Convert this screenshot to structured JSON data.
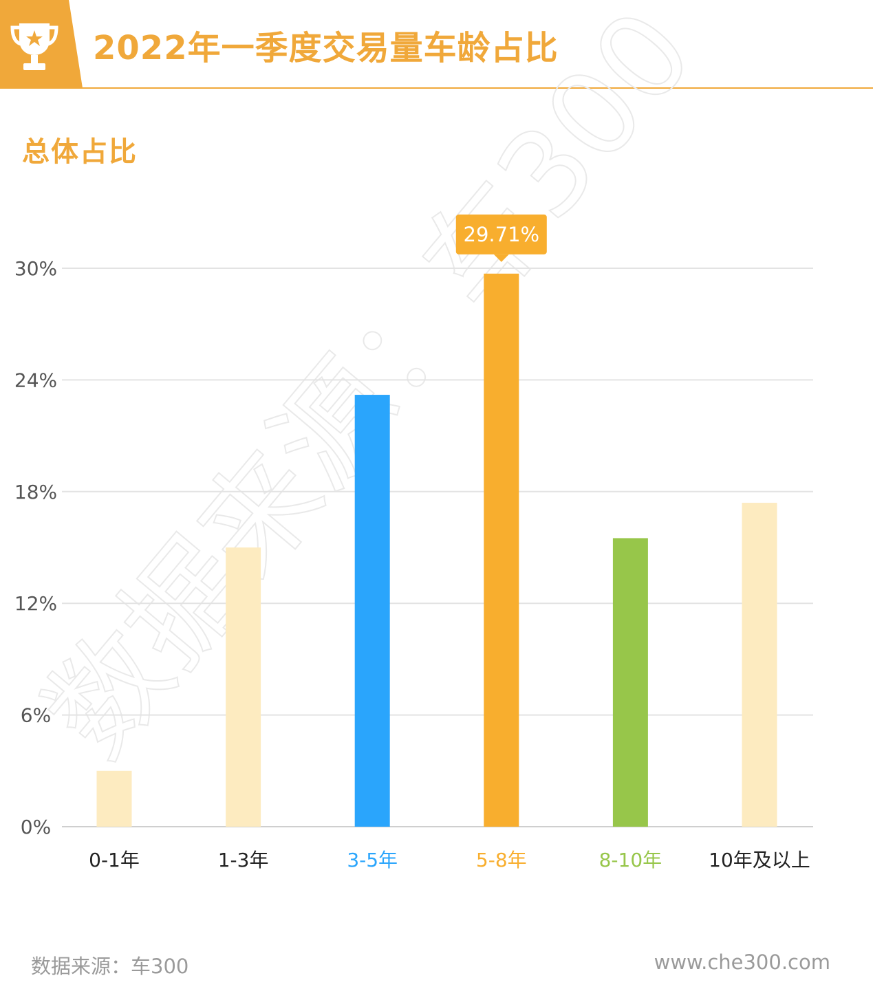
{
  "header": {
    "title": "2022年一季度交易量车龄占比",
    "badge_icon": "trophy-icon",
    "accent_color": "#F0A83A"
  },
  "subtitle": "总体占比",
  "watermark": "数据来源：车300",
  "chart_data": {
    "type": "bar",
    "title": "",
    "xlabel": "",
    "ylabel": "",
    "ylim": [
      0,
      30
    ],
    "yticks": [
      "0%",
      "6%",
      "12%",
      "18%",
      "24%",
      "30%"
    ],
    "ytick_values": [
      0,
      6,
      12,
      18,
      24,
      30
    ],
    "grid": true,
    "categories": [
      "0-1年",
      "1-3年",
      "3-5年",
      "5-8年",
      "8-10年",
      "10年及以上"
    ],
    "values": [
      3.0,
      15.0,
      23.2,
      29.71,
      15.5,
      17.4
    ],
    "bar_colors": [
      "#FDEBC0",
      "#FDEBC0",
      "#2AA5FC",
      "#F8AE2E",
      "#97C64A",
      "#FDEBC0"
    ],
    "label_colors": [
      "#222222",
      "#222222",
      "#2AA5FC",
      "#F8AE2E",
      "#97C64A",
      "#222222"
    ],
    "highlight": {
      "category": "5-8年",
      "label": "29.71%"
    }
  },
  "footer": {
    "source": "数据来源：车300",
    "website": "www.che300.com"
  }
}
